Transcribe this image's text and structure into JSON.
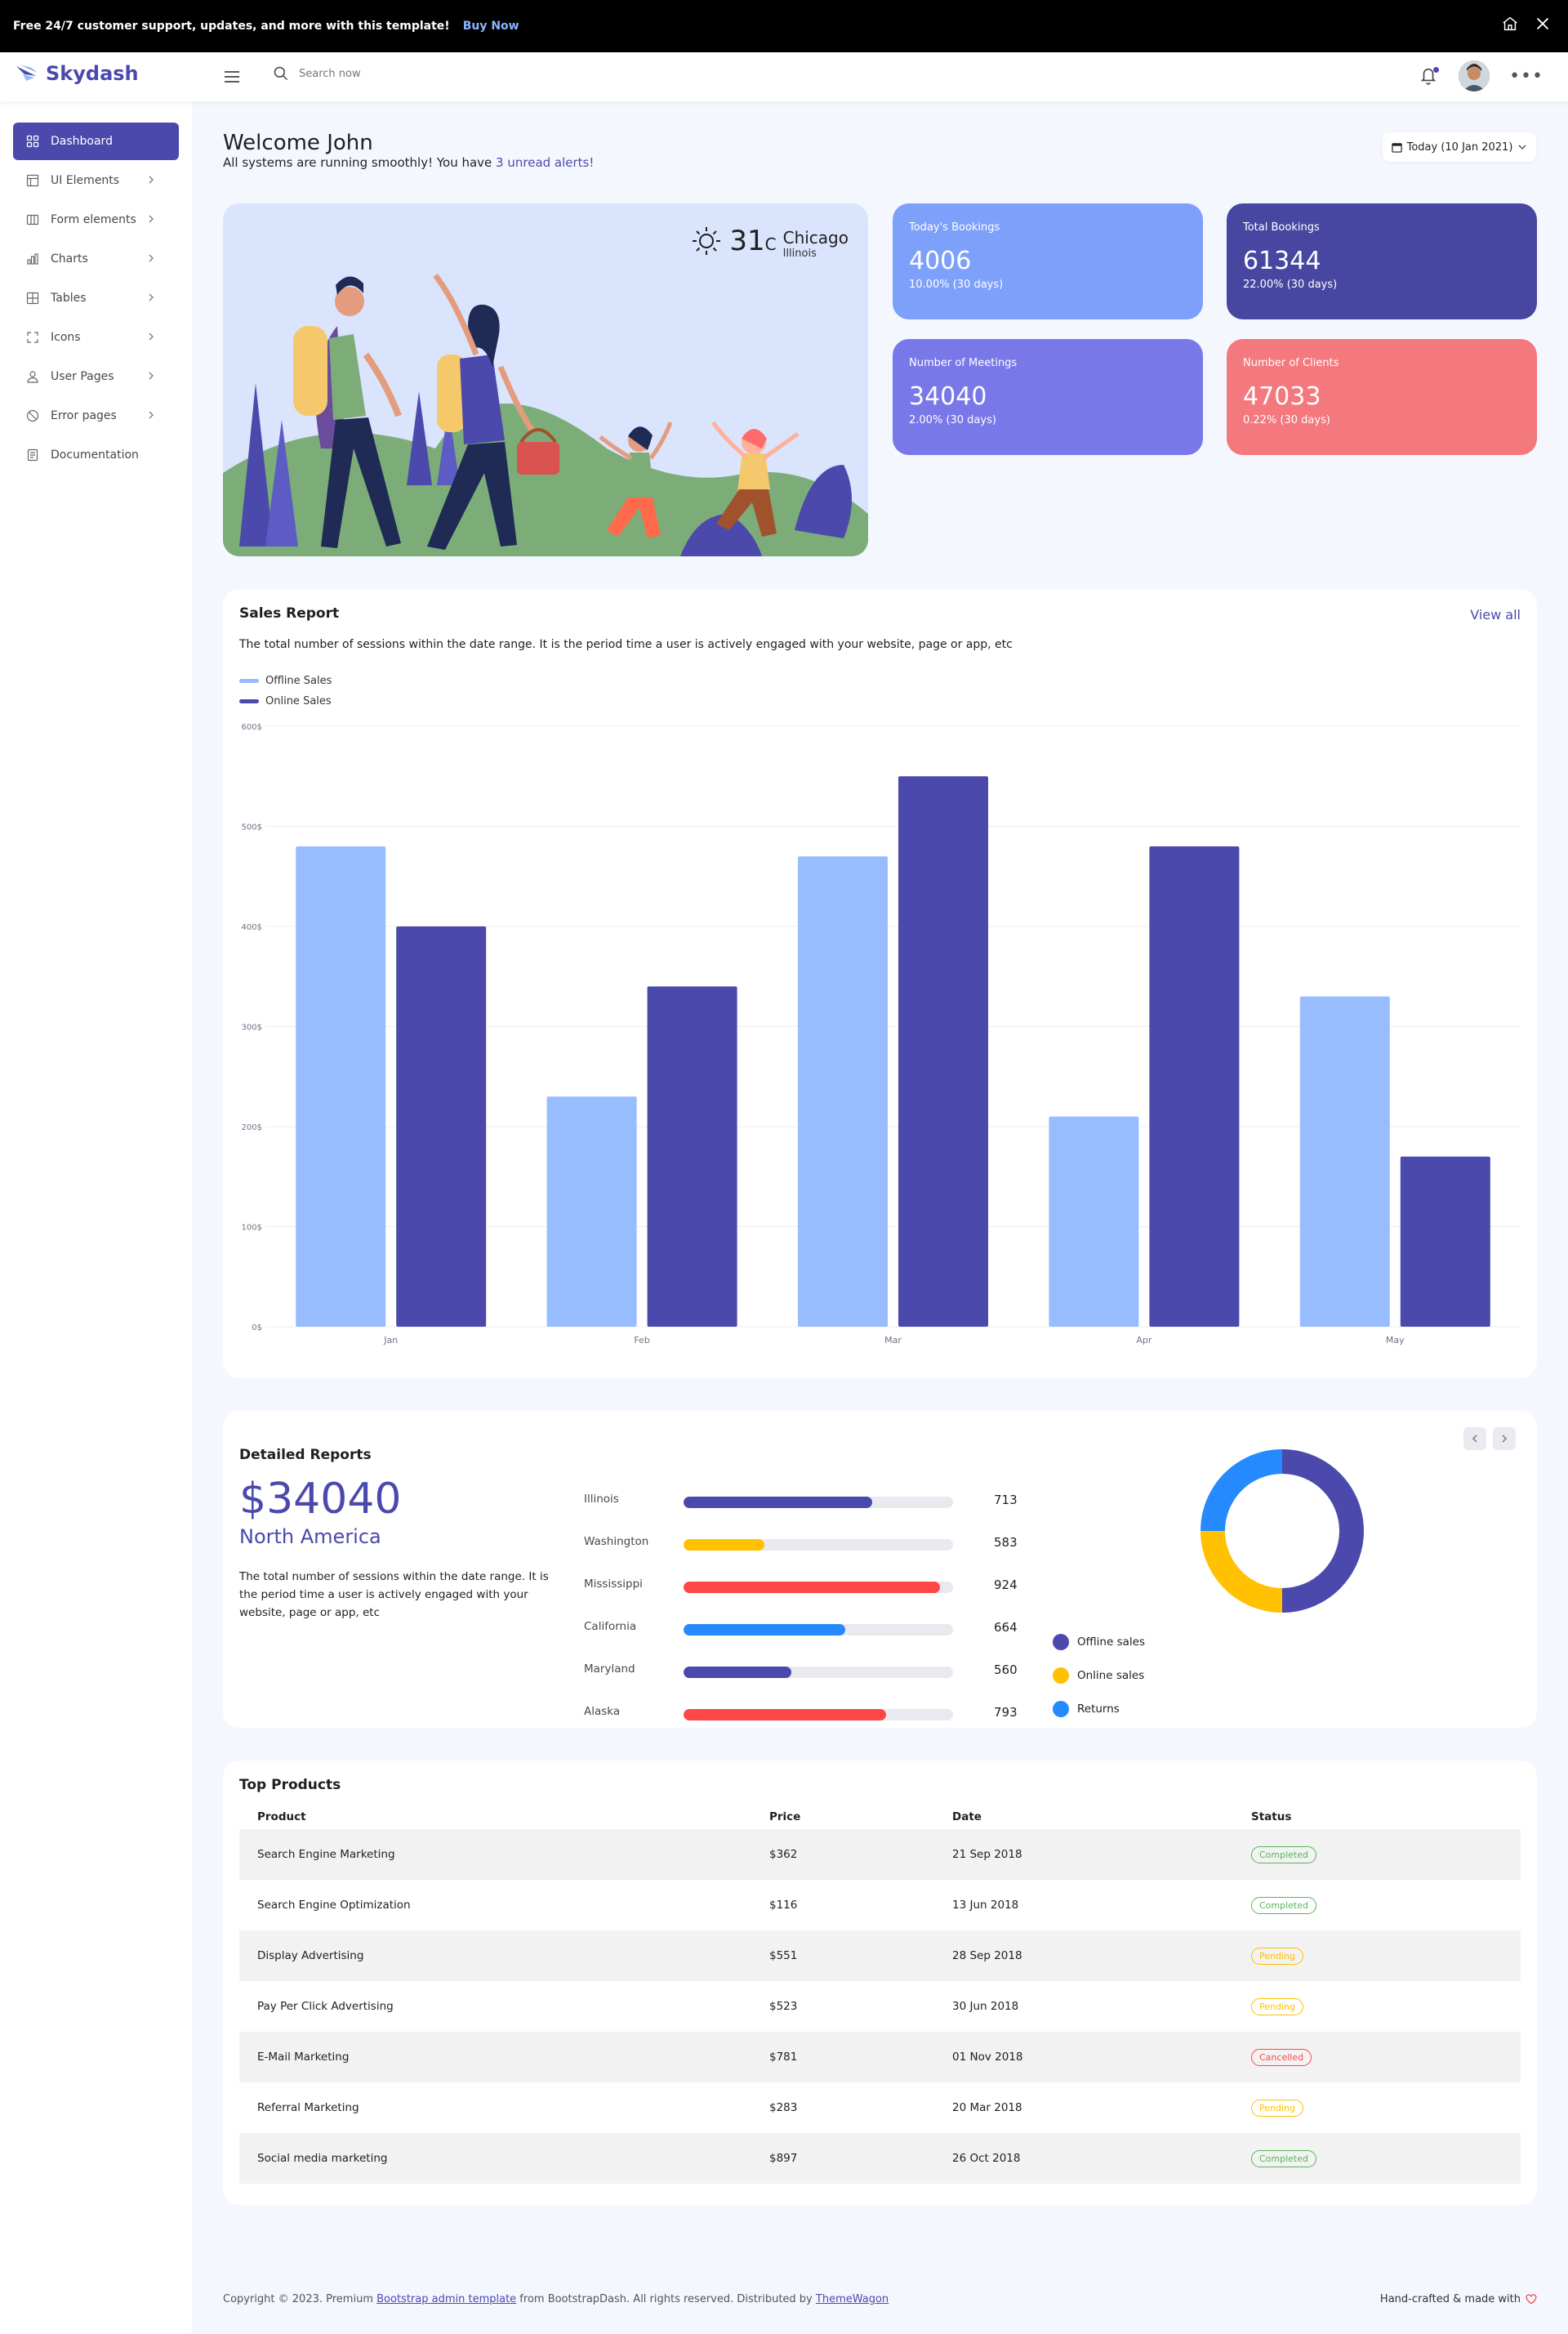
{
  "promo": {
    "text": "Free 24/7 customer support, updates, and more with this template!",
    "link": "Buy Now"
  },
  "navbar": {
    "brand": "Skydash",
    "search_placeholder": "Search now"
  },
  "sidebar": {
    "items": [
      {
        "label": "Dashboard",
        "icon": "grid-icon",
        "active": true
      },
      {
        "label": "UI Elements",
        "icon": "layout-icon",
        "chevron": true
      },
      {
        "label": "Form elements",
        "icon": "columns-icon",
        "chevron": true
      },
      {
        "label": "Charts",
        "icon": "bar-chart-icon",
        "chevron": true
      },
      {
        "label": "Tables",
        "icon": "table-icon",
        "chevron": true
      },
      {
        "label": "Icons",
        "icon": "expand-icon",
        "chevron": true
      },
      {
        "label": "User Pages",
        "icon": "user-icon",
        "chevron": true
      },
      {
        "label": "Error pages",
        "icon": "ban-icon",
        "chevron": true
      },
      {
        "label": "Documentation",
        "icon": "document-icon",
        "chevron": false
      }
    ]
  },
  "welcome": {
    "title": "Welcome John",
    "subtitle_prefix": "All systems are running smoothly! You have ",
    "alert_link": "3 unread alerts!",
    "date_button": "Today (10 Jan 2021)"
  },
  "weather": {
    "temperature": "31",
    "unit": "C",
    "city": "Chicago",
    "state": "Illinois"
  },
  "stats": [
    {
      "label": "Today's Bookings",
      "value": "4006",
      "sub": "10.00% (30 days)",
      "color": "#7da0fa"
    },
    {
      "label": "Total Bookings",
      "value": "61344",
      "sub": "22.00% (30 days)",
      "color": "#4747a1"
    },
    {
      "label": "Number of Meetings",
      "value": "34040",
      "sub": "2.00% (30 days)",
      "color": "#7978e9"
    },
    {
      "label": "Number of Clients",
      "value": "47033",
      "sub": "0.22% (30 days)",
      "color": "#f3797e"
    }
  ],
  "sales": {
    "title": "Sales Report",
    "view_all": "View all",
    "description": "The total number of sessions within the date range. It is the period time a user is actively engaged with your website, page or app, etc"
  },
  "chart_data": {
    "type": "bar",
    "categories": [
      "Jan",
      "Feb",
      "Mar",
      "Apr",
      "May"
    ],
    "series": [
      {
        "name": "Offline Sales",
        "values": [
          480,
          230,
          470,
          210,
          330
        ],
        "color": "#98bdff"
      },
      {
        "name": "Online Sales",
        "values": [
          400,
          340,
          550,
          480,
          170
        ],
        "color": "#4b49ac"
      }
    ],
    "ylim": [
      0,
      600
    ],
    "yticks": [
      "0$",
      "100$",
      "200$",
      "300$",
      "400$",
      "500$",
      "600$"
    ],
    "ytick_values": [
      0,
      100,
      200,
      300,
      400,
      500,
      600
    ],
    "grid": true,
    "legend_position": "top-left"
  },
  "detailed": {
    "title": "Detailed Reports",
    "amount": "$34040",
    "region": "North America",
    "description": "The total number of sessions within the date range. It is the period time a user is actively engaged with your website, page or app, etc",
    "regions": [
      {
        "name": "Illinois",
        "value": "713",
        "percent": 70,
        "color": "#4b49ac"
      },
      {
        "name": "Washington",
        "value": "583",
        "percent": 30,
        "color": "#ffc100"
      },
      {
        "name": "Mississippi",
        "value": "924",
        "percent": 95,
        "color": "#ff4747"
      },
      {
        "name": "California",
        "value": "664",
        "percent": 60,
        "color": "#248afd"
      },
      {
        "name": "Maryland",
        "value": "560",
        "percent": 40,
        "color": "#4b49ac"
      },
      {
        "name": "Alaska",
        "value": "793",
        "percent": 75,
        "color": "#ff4747"
      }
    ],
    "donut": [
      {
        "name": "Offline sales",
        "value": 50,
        "color": "#4b49ac"
      },
      {
        "name": "Online sales",
        "value": 25,
        "color": "#ffc100"
      },
      {
        "name": "Returns",
        "value": 25,
        "color": "#248afd"
      }
    ]
  },
  "products": {
    "title": "Top Products",
    "headers": [
      "Product",
      "Price",
      "Date",
      "Status"
    ],
    "rows": [
      {
        "product": "Search Engine Marketing",
        "price": "$362",
        "date": "21 Sep 2018",
        "status": "Completed"
      },
      {
        "product": "Search Engine Optimization",
        "price": "$116",
        "date": "13 Jun 2018",
        "status": "Completed"
      },
      {
        "product": "Display Advertising",
        "price": "$551",
        "date": "28 Sep 2018",
        "status": "Pending"
      },
      {
        "product": "Pay Per Click Advertising",
        "price": "$523",
        "date": "30 Jun 2018",
        "status": "Pending"
      },
      {
        "product": "E-Mail Marketing",
        "price": "$781",
        "date": "01 Nov 2018",
        "status": "Cancelled"
      },
      {
        "product": "Referral Marketing",
        "price": "$283",
        "date": "20 Mar 2018",
        "status": "Pending"
      },
      {
        "product": "Social media marketing",
        "price": "$897",
        "date": "26 Oct 2018",
        "status": "Completed"
      }
    ],
    "status_colors": {
      "Completed": "#57b657",
      "Pending": "#ffc100",
      "Cancelled": "#ff4747"
    }
  },
  "footer": {
    "prefix": "Copyright © 2023. Premium ",
    "link1": "Bootstrap admin template",
    "middle": " from BootstrapDash. All rights reserved. Distributed by ",
    "link2": "ThemeWagon",
    "right": "Hand-crafted & made with"
  }
}
